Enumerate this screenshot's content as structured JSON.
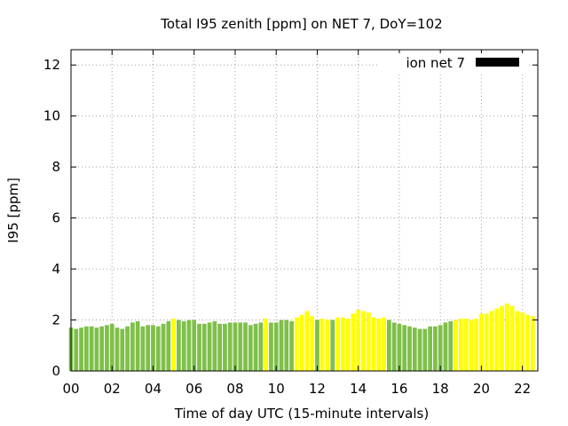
{
  "chart_data": {
    "type": "bar",
    "title": "Total I95 zenith [ppm] on NET 7, DoY=102",
    "xlabel": "Time of day UTC (15-minute intervals)",
    "ylabel": "I95 [ppm]",
    "xlim": [
      0,
      22.75
    ],
    "ylim": [
      0,
      12.6
    ],
    "interval_hours": 0.25,
    "x_ticks": [
      {
        "value": 0,
        "label": "00"
      },
      {
        "value": 2,
        "label": "02"
      },
      {
        "value": 4,
        "label": "04"
      },
      {
        "value": 6,
        "label": "06"
      },
      {
        "value": 8,
        "label": "08"
      },
      {
        "value": 10,
        "label": "10"
      },
      {
        "value": 12,
        "label": "12"
      },
      {
        "value": 14,
        "label": "14"
      },
      {
        "value": 16,
        "label": "16"
      },
      {
        "value": 18,
        "label": "18"
      },
      {
        "value": 20,
        "label": "20"
      },
      {
        "value": 22,
        "label": "22"
      }
    ],
    "y_ticks": [
      {
        "value": 0,
        "label": "0"
      },
      {
        "value": 2,
        "label": "2"
      },
      {
        "value": 4,
        "label": "4"
      },
      {
        "value": 6,
        "label": "6"
      },
      {
        "value": 8,
        "label": "8"
      },
      {
        "value": 10,
        "label": "10"
      },
      {
        "value": 12,
        "label": "12"
      }
    ],
    "grid": true,
    "legend": {
      "label": "ion net 7",
      "color": "#000000",
      "position": "top-right"
    },
    "colors": {
      "green": "#7fbf4a",
      "yellow": "#ffff00"
    },
    "values": [
      1.7,
      1.65,
      1.7,
      1.75,
      1.75,
      1.7,
      1.75,
      1.8,
      1.85,
      1.7,
      1.65,
      1.75,
      1.9,
      1.95,
      1.75,
      1.8,
      1.8,
      1.75,
      1.85,
      1.95,
      2.05,
      2.0,
      1.95,
      2.0,
      2.0,
      1.85,
      1.85,
      1.9,
      1.95,
      1.85,
      1.85,
      1.9,
      1.9,
      1.9,
      1.9,
      1.8,
      1.85,
      1.9,
      2.05,
      1.9,
      1.9,
      2.0,
      2.0,
      1.95,
      2.1,
      2.2,
      2.35,
      2.15,
      2.0,
      2.05,
      2.0,
      2.0,
      2.1,
      2.1,
      2.05,
      2.25,
      2.4,
      2.35,
      2.3,
      2.1,
      2.05,
      2.1,
      2.0,
      1.9,
      1.85,
      1.8,
      1.75,
      1.7,
      1.65,
      1.65,
      1.75,
      1.75,
      1.8,
      1.9,
      1.95,
      2.0,
      2.05,
      2.05,
      2.0,
      2.05,
      2.25,
      2.25,
      2.35,
      2.45,
      2.55,
      2.65,
      2.55,
      2.35,
      2.3,
      2.2,
      2.15
    ],
    "bar_colors": [
      "green",
      "green",
      "green",
      "green",
      "green",
      "green",
      "green",
      "green",
      "green",
      "green",
      "green",
      "green",
      "green",
      "green",
      "green",
      "green",
      "green",
      "green",
      "green",
      "green",
      "yellow",
      "green",
      "green",
      "green",
      "green",
      "green",
      "green",
      "green",
      "green",
      "green",
      "green",
      "green",
      "green",
      "green",
      "green",
      "green",
      "green",
      "green",
      "yellow",
      "green",
      "green",
      "green",
      "green",
      "green",
      "yellow",
      "yellow",
      "yellow",
      "yellow",
      "green",
      "yellow",
      "yellow",
      "green",
      "yellow",
      "yellow",
      "yellow",
      "yellow",
      "yellow",
      "yellow",
      "yellow",
      "yellow",
      "yellow",
      "yellow",
      "green",
      "green",
      "green",
      "green",
      "green",
      "green",
      "green",
      "green",
      "green",
      "green",
      "green",
      "green",
      "green",
      "yellow",
      "yellow",
      "yellow",
      "yellow",
      "yellow",
      "yellow",
      "yellow",
      "yellow",
      "yellow",
      "yellow",
      "yellow",
      "yellow",
      "yellow",
      "yellow",
      "yellow",
      "yellow"
    ]
  }
}
